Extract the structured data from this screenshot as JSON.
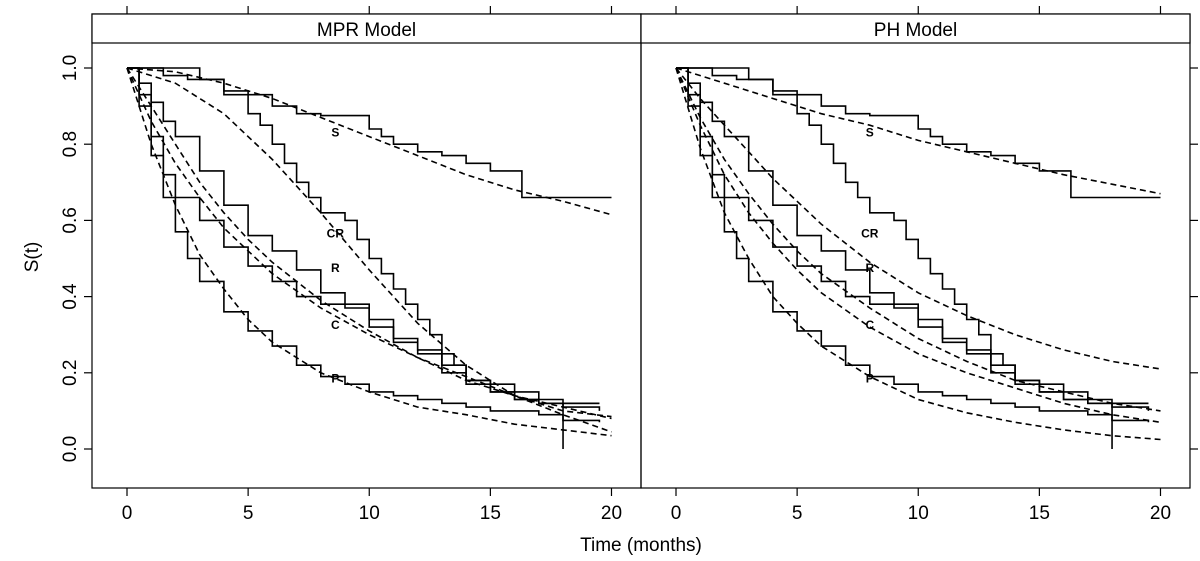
{
  "chart_data": {
    "type": "line",
    "xlabel": "Time (months)",
    "ylabel": "S(t)",
    "xlim": [
      0,
      20
    ],
    "ylim": [
      0,
      1
    ],
    "xticks": [
      "0",
      "5",
      "10",
      "15",
      "20"
    ],
    "yticks": [
      "0.0",
      "0.2",
      "0.4",
      "0.6",
      "0.8",
      "1.0"
    ],
    "grid": false,
    "panels": [
      {
        "title": "MPR Model",
        "labels": [
          {
            "text": "S",
            "x": 8.6,
            "y": 0.82
          },
          {
            "text": "CR",
            "x": 8.6,
            "y": 0.555
          },
          {
            "text": "R",
            "x": 8.6,
            "y": 0.465
          },
          {
            "text": "C",
            "x": 8.6,
            "y": 0.315
          },
          {
            "text": "P",
            "x": 8.6,
            "y": 0.175
          }
        ],
        "km": [
          {
            "name": "S",
            "x": [
              0,
              1.5,
              2.5,
              4,
              5,
              6,
              7,
              8,
              9,
              10,
              10.5,
              11,
              12,
              13,
              14,
              15,
              16,
              16.3,
              18,
              20
            ],
            "y": [
              1,
              0.98,
              0.97,
              0.94,
              0.93,
              0.9,
              0.88,
              0.875,
              0.875,
              0.84,
              0.82,
              0.8,
              0.78,
              0.77,
              0.75,
              0.73,
              0.73,
              0.66,
              0.66,
              0.66
            ]
          },
          {
            "name": "CR",
            "x": [
              0,
              3,
              4,
              5,
              5.5,
              6,
              6.5,
              7,
              7.5,
              8,
              9,
              9.5,
              10,
              10.5,
              11,
              11.5,
              12,
              12.5,
              13,
              13.5,
              14,
              15,
              16,
              17,
              18,
              19.5
            ],
            "y": [
              1,
              0.97,
              0.93,
              0.88,
              0.85,
              0.8,
              0.75,
              0.7,
              0.66,
              0.62,
              0.6,
              0.55,
              0.5,
              0.46,
              0.42,
              0.38,
              0.34,
              0.3,
              0.25,
              0.22,
              0.18,
              0.17,
              0.15,
              0.13,
              0.12,
              0.12
            ]
          },
          {
            "name": "R",
            "x": [
              0,
              0.5,
              1,
              1.5,
              2,
              3,
              4,
              5,
              6,
              7,
              8,
              9,
              10,
              11,
              12,
              13,
              14,
              15,
              16,
              17,
              18,
              19.5
            ],
            "y": [
              1,
              0.96,
              0.91,
              0.86,
              0.82,
              0.73,
              0.64,
              0.56,
              0.52,
              0.47,
              0.41,
              0.37,
              0.34,
              0.29,
              0.25,
              0.22,
              0.18,
              0.15,
              0.13,
              0.12,
              0.11,
              0.1
            ]
          },
          {
            "name": "C",
            "x": [
              0,
              0.5,
              1,
              1.5,
              2,
              3,
              4,
              5,
              6,
              7,
              8,
              9,
              10,
              11,
              12,
              13,
              14,
              15,
              16,
              17,
              18,
              19.5
            ],
            "y": [
              1,
              0.93,
              0.82,
              0.72,
              0.66,
              0.6,
              0.53,
              0.48,
              0.44,
              0.4,
              0.38,
              0.38,
              0.32,
              0.28,
              0.26,
              0.2,
              0.17,
              0.15,
              0.13,
              0.12,
              0.12,
              0.12
            ]
          },
          {
            "name": "P",
            "x": [
              0,
              0.5,
              1,
              1.5,
              2,
              2.5,
              3,
              4,
              5,
              6,
              7,
              8,
              9,
              10,
              11,
              12,
              13,
              14,
              15,
              16,
              17,
              18,
              19.5
            ],
            "y": [
              1,
              0.9,
              0.77,
              0.66,
              0.57,
              0.5,
              0.44,
              0.36,
              0.31,
              0.27,
              0.22,
              0.19,
              0.17,
              0.15,
              0.14,
              0.13,
              0.12,
              0.11,
              0.1,
              0.1,
              0.09,
              0.075,
              0.07
            ]
          }
        ],
        "fits": [
          {
            "name": "S",
            "x": [
              0,
              2,
              4,
              6,
              8,
              10,
              12,
              14,
              16,
              18,
              20
            ],
            "y": [
              1,
              0.99,
              0.96,
              0.92,
              0.87,
              0.82,
              0.77,
              0.72,
              0.68,
              0.65,
              0.615
            ]
          },
          {
            "name": "CR",
            "x": [
              0,
              2,
              4,
              6,
              7,
              8,
              10,
              12,
              14,
              16,
              18,
              20
            ],
            "y": [
              1,
              0.96,
              0.88,
              0.76,
              0.69,
              0.62,
              0.47,
              0.33,
              0.22,
              0.14,
              0.1,
              0.085
            ]
          },
          {
            "name": "R",
            "x": [
              0,
              1,
              2,
              3,
              4,
              5,
              6,
              8,
              10,
              12,
              14,
              16,
              18,
              20
            ],
            "y": [
              1,
              0.9,
              0.8,
              0.7,
              0.62,
              0.55,
              0.49,
              0.39,
              0.31,
              0.24,
              0.18,
              0.14,
              0.11,
              0.08
            ]
          },
          {
            "name": "C",
            "x": [
              0,
              1,
              2,
              3,
              4,
              5,
              6,
              8,
              10,
              12,
              14,
              16,
              18,
              20
            ],
            "y": [
              1,
              0.86,
              0.75,
              0.66,
              0.58,
              0.52,
              0.46,
              0.37,
              0.3,
              0.24,
              0.19,
              0.14,
              0.09,
              0.045
            ]
          },
          {
            "name": "P",
            "x": [
              0,
              1,
              2,
              3,
              4,
              5,
              6,
              8,
              10,
              12,
              14,
              16,
              18,
              20
            ],
            "y": [
              1,
              0.8,
              0.64,
              0.51,
              0.42,
              0.34,
              0.28,
              0.2,
              0.15,
              0.11,
              0.09,
              0.065,
              0.05,
              0.035
            ]
          }
        ],
        "censor_line": {
          "x": 18,
          "y0": 0.0,
          "y1": 0.12
        }
      },
      {
        "title": "PH Model",
        "labels": [
          {
            "text": "S",
            "x": 8.0,
            "y": 0.82
          },
          {
            "text": "CR",
            "x": 8.0,
            "y": 0.555
          },
          {
            "text": "R",
            "x": 8.0,
            "y": 0.465
          },
          {
            "text": "C",
            "x": 8.0,
            "y": 0.315
          },
          {
            "text": "P",
            "x": 8.0,
            "y": 0.175
          }
        ],
        "km": [
          {
            "name": "S",
            "x": [
              0,
              1.5,
              2.5,
              4,
              5,
              6,
              7,
              8,
              9,
              10,
              10.5,
              11,
              12,
              13,
              14,
              15,
              16,
              16.3,
              18,
              20
            ],
            "y": [
              1,
              0.98,
              0.97,
              0.94,
              0.93,
              0.9,
              0.88,
              0.875,
              0.875,
              0.84,
              0.82,
              0.8,
              0.78,
              0.77,
              0.75,
              0.73,
              0.73,
              0.66,
              0.66,
              0.66
            ]
          },
          {
            "name": "CR",
            "x": [
              0,
              3,
              4,
              5,
              5.5,
              6,
              6.5,
              7,
              7.5,
              8,
              9,
              9.5,
              10,
              10.5,
              11,
              11.5,
              12,
              12.5,
              13,
              13.5,
              14,
              15,
              16,
              17,
              18,
              19.5
            ],
            "y": [
              1,
              0.97,
              0.93,
              0.88,
              0.85,
              0.8,
              0.75,
              0.7,
              0.66,
              0.62,
              0.6,
              0.55,
              0.5,
              0.46,
              0.42,
              0.38,
              0.34,
              0.3,
              0.25,
              0.22,
              0.18,
              0.17,
              0.15,
              0.13,
              0.12,
              0.12
            ]
          },
          {
            "name": "R",
            "x": [
              0,
              0.5,
              1,
              1.5,
              2,
              3,
              4,
              5,
              6,
              7,
              8,
              9,
              10,
              11,
              12,
              13,
              14,
              15,
              16,
              17,
              18,
              19.5
            ],
            "y": [
              1,
              0.96,
              0.91,
              0.86,
              0.82,
              0.73,
              0.64,
              0.56,
              0.52,
              0.47,
              0.41,
              0.37,
              0.34,
              0.29,
              0.25,
              0.22,
              0.18,
              0.15,
              0.13,
              0.12,
              0.11,
              0.1
            ]
          },
          {
            "name": "C",
            "x": [
              0,
              0.5,
              1,
              1.5,
              2,
              3,
              4,
              5,
              6,
              7,
              8,
              9,
              10,
              11,
              12,
              13,
              14,
              15,
              16,
              17,
              18,
              19.5
            ],
            "y": [
              1,
              0.93,
              0.82,
              0.72,
              0.66,
              0.6,
              0.53,
              0.48,
              0.44,
              0.4,
              0.38,
              0.38,
              0.32,
              0.28,
              0.26,
              0.2,
              0.17,
              0.15,
              0.13,
              0.12,
              0.12,
              0.12
            ]
          },
          {
            "name": "P",
            "x": [
              0,
              0.5,
              1,
              1.5,
              2,
              2.5,
              3,
              4,
              5,
              6,
              7,
              8,
              9,
              10,
              11,
              12,
              13,
              14,
              15,
              16,
              17,
              18,
              19.5
            ],
            "y": [
              1,
              0.9,
              0.77,
              0.66,
              0.57,
              0.5,
              0.44,
              0.36,
              0.31,
              0.27,
              0.22,
              0.19,
              0.17,
              0.15,
              0.14,
              0.13,
              0.12,
              0.11,
              0.1,
              0.1,
              0.09,
              0.075,
              0.07
            ]
          }
        ],
        "fits": [
          {
            "name": "S",
            "x": [
              0,
              2,
              4,
              6,
              8,
              10,
              12,
              14,
              16,
              18,
              20
            ],
            "y": [
              1,
              0.96,
              0.92,
              0.88,
              0.85,
              0.81,
              0.78,
              0.75,
              0.72,
              0.695,
              0.67
            ]
          },
          {
            "name": "CR",
            "x": [
              0,
              1,
              2,
              3,
              4,
              5,
              6,
              8,
              10,
              12,
              14,
              16,
              18,
              20
            ],
            "y": [
              1,
              0.92,
              0.85,
              0.78,
              0.71,
              0.65,
              0.59,
              0.49,
              0.41,
              0.35,
              0.3,
              0.26,
              0.23,
              0.21
            ]
          },
          {
            "name": "R",
            "x": [
              0,
              1,
              2,
              3,
              4,
              5,
              6,
              8,
              10,
              12,
              14,
              16,
              18,
              20
            ],
            "y": [
              1,
              0.87,
              0.76,
              0.67,
              0.59,
              0.52,
              0.46,
              0.37,
              0.29,
              0.23,
              0.18,
              0.15,
              0.12,
              0.1
            ]
          },
          {
            "name": "C",
            "x": [
              0,
              1,
              2,
              3,
              4,
              5,
              6,
              8,
              10,
              12,
              14,
              16,
              18,
              20
            ],
            "y": [
              1,
              0.85,
              0.72,
              0.62,
              0.54,
              0.47,
              0.41,
              0.32,
              0.25,
              0.2,
              0.16,
              0.12,
              0.09,
              0.07
            ]
          },
          {
            "name": "P",
            "x": [
              0,
              1,
              2,
              3,
              4,
              5,
              6,
              8,
              10,
              12,
              14,
              16,
              18,
              20
            ],
            "y": [
              1,
              0.79,
              0.62,
              0.5,
              0.4,
              0.33,
              0.27,
              0.19,
              0.13,
              0.095,
              0.07,
              0.05,
              0.035,
              0.025
            ]
          }
        ],
        "censor_line": {
          "x": 18,
          "y0": 0.0,
          "y1": 0.12
        }
      }
    ]
  }
}
